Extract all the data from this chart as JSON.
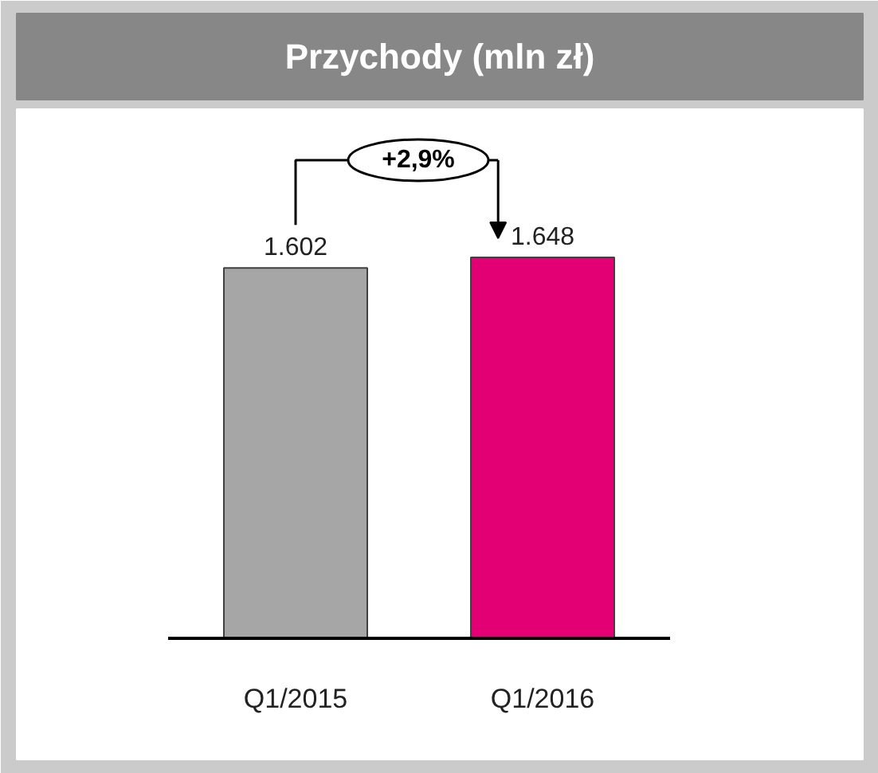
{
  "chart_data": {
    "type": "bar",
    "title": "Przychody (mln zł)",
    "categories": [
      "Q1/2015",
      "Q1/2016"
    ],
    "values": [
      1602,
      1648
    ],
    "colors": [
      "#a6a6a6",
      "#e20074"
    ],
    "value_labels": [
      "1.602",
      "1.648"
    ],
    "annotations": [
      "+2,9%"
    ],
    "grid": false
  }
}
